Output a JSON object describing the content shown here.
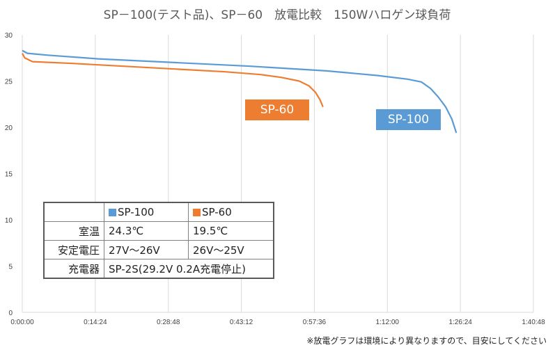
{
  "chart_data": {
    "type": "line",
    "title": "SP－100(テスト品)、SP－60　放電比較　150Wハロゲン球負荷",
    "xlabel": "",
    "ylabel": "",
    "xlim_minutes": [
      0,
      100.8
    ],
    "ylim": [
      0,
      30
    ],
    "y_ticks": [
      "0",
      "5",
      "10",
      "15",
      "20",
      "25",
      "30"
    ],
    "x_ticks": [
      "0:00:00",
      "0:14:24",
      "0:28:48",
      "0:43:12",
      "0:57:36",
      "1:12:00",
      "1:26:24",
      "1:40:48"
    ],
    "grid": "vertical",
    "series": [
      {
        "name": "SP-100",
        "color": "#5B9BD5",
        "x_minutes": [
          0,
          1,
          5,
          15,
          30,
          45,
          60,
          70,
          76,
          78.7,
          80.5,
          82,
          83.5,
          84.7,
          85.6
        ],
        "values": [
          28.3,
          28.0,
          27.8,
          27.4,
          27.0,
          26.6,
          26.1,
          25.6,
          25.2,
          24.9,
          24.2,
          23.3,
          22.2,
          20.9,
          19.4
        ]
      },
      {
        "name": "SP-60",
        "color": "#ED7D31",
        "x_minutes": [
          0,
          0.5,
          2,
          10,
          20,
          30,
          40,
          47,
          51,
          54.6,
          56.5,
          57.8,
          58.7,
          59.3
        ],
        "values": [
          28.0,
          27.5,
          27.1,
          26.9,
          26.6,
          26.3,
          26.0,
          25.7,
          25.4,
          25.0,
          24.5,
          23.8,
          23.0,
          22.2
        ]
      }
    ],
    "annotations": [
      "SP-100",
      "SP-60"
    ]
  },
  "table": {
    "header": [
      "",
      "SP-100",
      "SP-60"
    ],
    "rows": [
      {
        "label": "室温",
        "sp100": "24.3℃",
        "sp60": "19.5℃"
      },
      {
        "label": "安定電圧",
        "sp100": "27V～26V",
        "sp60": "26V～25V"
      },
      {
        "label": "充電器",
        "charger": "SP-2S(29.2V 0.2A充電停止)"
      }
    ]
  },
  "note": "※放電グラフは環境により異なりますので、目安にしてください"
}
